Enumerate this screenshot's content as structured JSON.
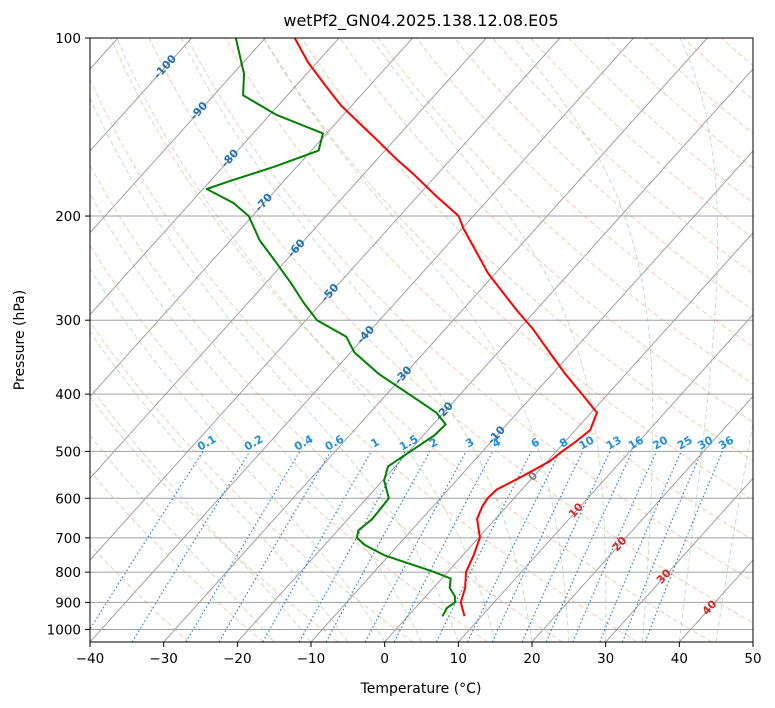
{
  "chart_data": {
    "type": "skew-t",
    "title": "wetPf2_GN04.2025.138.12.08.E05",
    "xlabel": "Temperature (°C)",
    "ylabel": "Pressure (hPa)",
    "xlim": [
      -40,
      50
    ],
    "ylim": [
      1050,
      100
    ],
    "y_scale": "log",
    "grid": true,
    "x_ticks": [
      "−40",
      "−30",
      "−20",
      "−10",
      "0",
      "10",
      "20",
      "30",
      "40",
      "50"
    ],
    "x_tick_values": [
      -40,
      -30,
      -20,
      -10,
      0,
      10,
      20,
      30,
      40,
      50
    ],
    "y_ticks": [
      "100",
      "200",
      "300",
      "400",
      "500",
      "600",
      "700",
      "800",
      "900",
      "1000"
    ],
    "y_tick_values": [
      100,
      200,
      300,
      400,
      500,
      600,
      700,
      800,
      900,
      1000
    ],
    "isotherm_labels": [
      {
        "text": "-100",
        "t": -100,
        "p": 112
      },
      {
        "text": "-90",
        "t": -90,
        "p": 133
      },
      {
        "text": "-80",
        "t": -80,
        "p": 160
      },
      {
        "text": "-70",
        "t": -70,
        "p": 190
      },
      {
        "text": "-60",
        "t": -60,
        "p": 227
      },
      {
        "text": "-50",
        "t": -50,
        "p": 270
      },
      {
        "text": "-40",
        "t": -40,
        "p": 318
      },
      {
        "text": "-30",
        "t": -30,
        "p": 372
      },
      {
        "text": "-20",
        "t": -20,
        "p": 428
      },
      {
        "text": "-10",
        "t": -10,
        "p": 470
      },
      {
        "text": "0",
        "t": 0,
        "p": 552
      },
      {
        "text": "10",
        "t": 10,
        "p": 630
      },
      {
        "text": "20",
        "t": 20,
        "p": 718
      },
      {
        "text": "30",
        "t": 30,
        "p": 815
      },
      {
        "text": "40",
        "t": 40,
        "p": 920
      }
    ],
    "mixing_ratio_labels": [
      "0.1",
      "0.2",
      "0.4",
      "0.6",
      "1",
      "1.5",
      "2",
      "3",
      "4",
      "6",
      "8",
      "10",
      "13",
      "16",
      "20",
      "25",
      "30",
      "36"
    ],
    "mixing_ratio_values": [
      0.1,
      0.2,
      0.4,
      0.6,
      1,
      1.5,
      2,
      3,
      4,
      6,
      8,
      10,
      13,
      16,
      20,
      25,
      30,
      36
    ],
    "series": [
      {
        "name": "",
        "color": "#ff0000",
        "p": [
          950,
          900,
          850,
          800,
          750,
          700,
          650,
          620,
          600,
          580,
          550,
          520,
          500,
          480,
          460,
          430,
          400,
          370,
          340,
          310,
          290,
          270,
          250,
          230,
          210,
          200,
          185,
          170,
          160,
          150,
          140,
          130,
          120,
          110,
          100
        ],
        "t": [
          7.7,
          5.5,
          4.3,
          2.5,
          1.5,
          0.2,
          -2.5,
          -3.3,
          -3.6,
          -3.4,
          -1.5,
          0.3,
          0.8,
          1.5,
          2.0,
          0.8,
          -3.5,
          -8.2,
          -13.0,
          -18.2,
          -22.3,
          -26.5,
          -31.0,
          -35.2,
          -39.8,
          -42.0,
          -47.5,
          -53.2,
          -57.5,
          -61.8,
          -66.5,
          -71.5,
          -76.2,
          -81.2,
          -86.0
        ]
      },
      {
        "name": "",
        "color": "#008000",
        "p": [
          950,
          920,
          900,
          880,
          850,
          820,
          800,
          780,
          750,
          720,
          700,
          680,
          650,
          600,
          560,
          530,
          500,
          470,
          450,
          430,
          400,
          370,
          340,
          320,
          300,
          280,
          260,
          240,
          220,
          200,
          190,
          180,
          175,
          165,
          155,
          145,
          135,
          125,
          115,
          100
        ],
        "t": [
          4.7,
          4.3,
          4.7,
          4.0,
          2.2,
          1.2,
          -1.8,
          -5.2,
          -10.5,
          -14.5,
          -16.5,
          -17.2,
          -16.7,
          -17.0,
          -19.8,
          -21.0,
          -19.8,
          -18.5,
          -18.3,
          -21.0,
          -27.0,
          -33.5,
          -39.5,
          -42.5,
          -48.5,
          -52.5,
          -56.5,
          -61.0,
          -66.0,
          -70.5,
          -74.2,
          -79.5,
          -77.5,
          -73.0,
          -69.0,
          -70.5,
          -79.0,
          -86.0,
          -88.5,
          -94.0
        ]
      }
    ]
  }
}
